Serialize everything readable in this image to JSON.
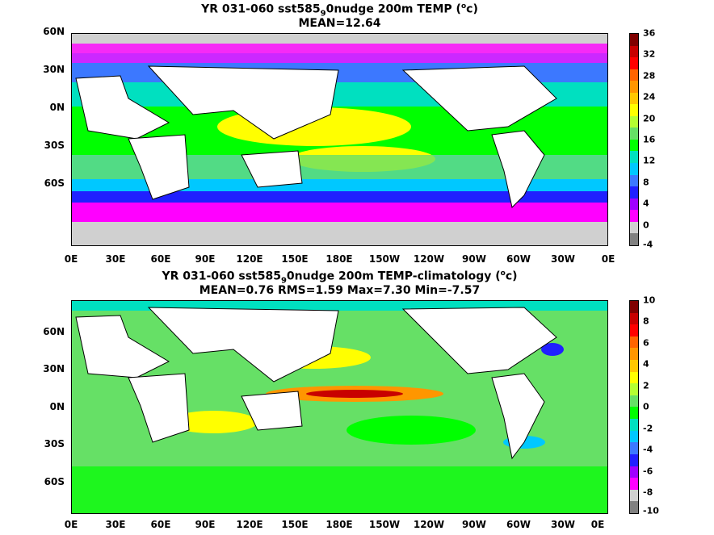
{
  "panels": [
    {
      "title_line1_prefix": "YR 031-060 sst585",
      "title_line1_sub": "9",
      "title_line1_suffix": "0nudge 200m TEMP (",
      "title_unit_sup": "o",
      "title_unit_end": "c)",
      "title_line2": "MEAN=12.64",
      "colorbar_labels": [
        "36",
        "32",
        "28",
        "24",
        "20",
        "16",
        "12",
        "8",
        "4",
        "0",
        "-4"
      ],
      "colors": [
        "#808080",
        "#d0d0d0",
        "#ff00ff",
        "#a000ff",
        "#2020ff",
        "#3c78ff",
        "#00c8ff",
        "#00e0c0",
        "#00ff00",
        "#66e066",
        "#b4ff32",
        "#ffff00",
        "#ffc800",
        "#ff9600",
        "#ff6400",
        "#ff0000",
        "#c80000",
        "#800000"
      ]
    },
    {
      "title_line1_prefix": "YR 031-060 sst585",
      "title_line1_sub": "9",
      "title_line1_suffix": "0nudge 200m TEMP-climatology (",
      "title_unit_sup": "o",
      "title_unit_end": "c)",
      "title_line2": "MEAN=0.76   RMS=1.59   Max=7.30   Min=-7.57",
      "colorbar_labels": [
        "10",
        "8",
        "6",
        "4",
        "2",
        "0",
        "-2",
        "-4",
        "-6",
        "-8",
        "-10"
      ],
      "colors": [
        "#808080",
        "#d0d0d0",
        "#ff00ff",
        "#a000ff",
        "#2020ff",
        "#3c78ff",
        "#00c8ff",
        "#00e0c0",
        "#00ff00",
        "#66e066",
        "#b4ff32",
        "#ffff00",
        "#ffc800",
        "#ff9600",
        "#ff6400",
        "#ff0000",
        "#c80000",
        "#800000"
      ]
    }
  ],
  "lat_labels": [
    "60N",
    "30N",
    "0N",
    "30S",
    "60S"
  ],
  "lon_labels": [
    "0E",
    "30E",
    "60E",
    "90E",
    "120E",
    "150E",
    "180E",
    "150W",
    "120W",
    "90W",
    "60W",
    "30W",
    "0E"
  ]
}
